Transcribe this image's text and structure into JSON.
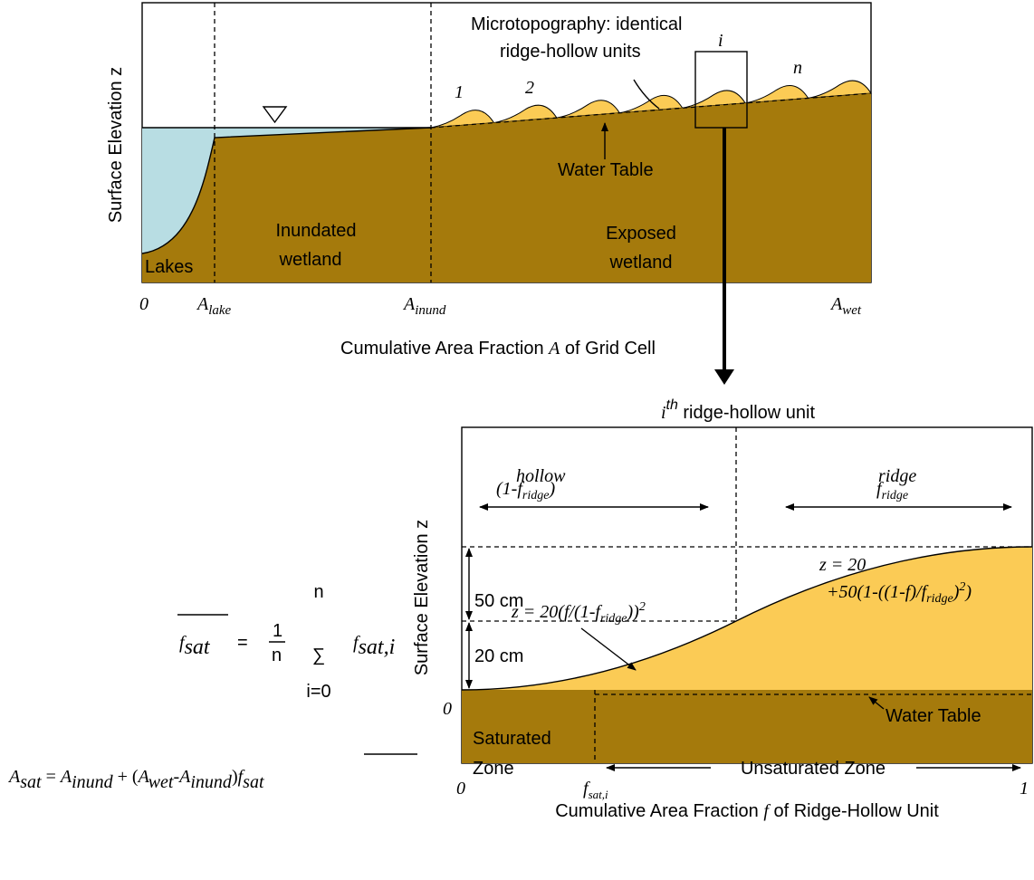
{
  "top_panel": {
    "y_label": "Surface Elevation z",
    "annotation": [
      "Microtopography: identical",
      "ridge-hollow units"
    ],
    "unit_labels": [
      "1",
      "2",
      "i",
      "n"
    ],
    "water_table": "Water Table",
    "zones": {
      "lakes": "Lakes",
      "inundated": [
        "Inundated",
        "wetland"
      ],
      "exposed": [
        "Exposed",
        "wetland"
      ]
    },
    "x_ticks": [
      {
        "base": "0"
      },
      {
        "base": "A",
        "sub": "lake"
      },
      {
        "base": "A",
        "sub": "inund"
      },
      {
        "base": "A",
        "sub": "wet"
      }
    ],
    "x_label": [
      "Cumulative Area Fraction ",
      "A",
      " of Grid Cell"
    ]
  },
  "bottom_panel": {
    "title": [
      "i",
      "th",
      " ridge-hollow unit"
    ],
    "y_label": "Surface Elevation z",
    "y_zero": "0",
    "hollow": {
      "name": "hollow",
      "fraction": [
        "(1-f",
        "ridge",
        ")"
      ]
    },
    "ridge": {
      "name": "ridge",
      "fraction": [
        "f",
        "ridge"
      ]
    },
    "heights": [
      "50 cm",
      "20 cm"
    ],
    "hollow_equation": [
      "z = 20(f/(1-f",
      "ridge",
      "))",
      "2"
    ],
    "ridge_equation": [
      "z = 20",
      "+50(1-((1-f)/f",
      "ridge",
      ")",
      "2",
      ")"
    ],
    "water_table": "Water Table",
    "saturated": [
      "Saturated",
      "Zone"
    ],
    "unsaturated": "Unsaturated Zone",
    "x_ticks": [
      {
        "base": "0"
      },
      {
        "base": "f",
        "sub": "sat,i"
      },
      {
        "base": "1"
      }
    ],
    "x_label": [
      "Cumulative Area Fraction ",
      "f",
      " of Ridge-Hollow Unit"
    ]
  },
  "equations": {
    "mean_fsat": [
      "f",
      "sat",
      "=",
      "1",
      "n",
      "n",
      "∑",
      "i=0",
      "f",
      "sat,i"
    ],
    "a_sat": [
      "A",
      "sat",
      " = ",
      "A",
      "inund",
      " + (",
      "A",
      "wet",
      "-",
      "A",
      "inund",
      ")",
      "f",
      "sat"
    ]
  }
}
